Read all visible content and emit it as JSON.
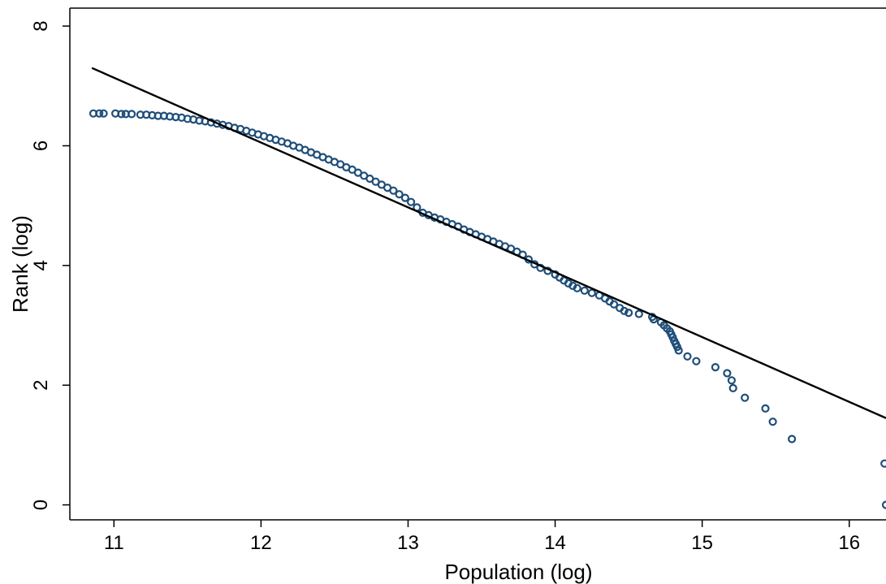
{
  "chart_data": {
    "type": "scatter",
    "xlabel": "Population (log)",
    "ylabel": "Rank (log)",
    "xlim": [
      10.7,
      16.25
    ],
    "ylim": [
      -0.25,
      8.3
    ],
    "xticks": [
      11,
      12,
      13,
      14,
      15,
      16
    ],
    "yticks": [
      0,
      2,
      4,
      6,
      8
    ],
    "xtick_labels": [
      "11",
      "12",
      "13",
      "14",
      "15",
      "16"
    ],
    "ytick_labels": [
      "0",
      "2",
      "4",
      "6",
      "8"
    ],
    "grid": false,
    "legend": "none",
    "colors": {
      "points": "#1f4e79",
      "fit_line": "#000000"
    },
    "fit_line": {
      "x": [
        10.85,
        16.25
      ],
      "y": [
        7.3,
        1.45
      ]
    },
    "series": [
      {
        "marker": "hollow-circle",
        "points": [
          [
            10.86,
            6.54
          ],
          [
            10.9,
            6.54
          ],
          [
            10.93,
            6.54
          ],
          [
            11.01,
            6.54
          ],
          [
            11.05,
            6.53
          ],
          [
            11.08,
            6.53
          ],
          [
            11.12,
            6.53
          ],
          [
            11.18,
            6.52
          ],
          [
            11.22,
            6.52
          ],
          [
            11.26,
            6.51
          ],
          [
            11.3,
            6.5
          ],
          [
            11.34,
            6.5
          ],
          [
            11.38,
            6.49
          ],
          [
            11.42,
            6.48
          ],
          [
            11.46,
            6.47
          ],
          [
            11.5,
            6.45
          ],
          [
            11.54,
            6.44
          ],
          [
            11.58,
            6.42
          ],
          [
            11.62,
            6.41
          ],
          [
            11.66,
            6.39
          ],
          [
            11.7,
            6.37
          ],
          [
            11.74,
            6.35
          ],
          [
            11.78,
            6.33
          ],
          [
            11.82,
            6.3
          ],
          [
            11.86,
            6.28
          ],
          [
            11.9,
            6.25
          ],
          [
            11.94,
            6.22
          ],
          [
            11.98,
            6.19
          ],
          [
            12.02,
            6.16
          ],
          [
            12.06,
            6.13
          ],
          [
            12.1,
            6.1
          ],
          [
            12.14,
            6.07
          ],
          [
            12.18,
            6.04
          ],
          [
            12.22,
            6.0
          ],
          [
            12.26,
            5.97
          ],
          [
            12.3,
            5.93
          ],
          [
            12.34,
            5.89
          ],
          [
            12.38,
            5.85
          ],
          [
            12.42,
            5.81
          ],
          [
            12.46,
            5.77
          ],
          [
            12.5,
            5.73
          ],
          [
            12.54,
            5.69
          ],
          [
            12.58,
            5.64
          ],
          [
            12.62,
            5.6
          ],
          [
            12.66,
            5.55
          ],
          [
            12.7,
            5.5
          ],
          [
            12.74,
            5.45
          ],
          [
            12.78,
            5.4
          ],
          [
            12.82,
            5.35
          ],
          [
            12.86,
            5.3
          ],
          [
            12.9,
            5.25
          ],
          [
            12.94,
            5.19
          ],
          [
            12.98,
            5.13
          ],
          [
            13.02,
            5.06
          ],
          [
            13.06,
            4.97
          ],
          [
            13.1,
            4.88
          ],
          [
            13.14,
            4.84
          ],
          [
            13.18,
            4.8
          ],
          [
            13.22,
            4.77
          ],
          [
            13.26,
            4.73
          ],
          [
            13.3,
            4.69
          ],
          [
            13.34,
            4.65
          ],
          [
            13.38,
            4.6
          ],
          [
            13.42,
            4.56
          ],
          [
            13.46,
            4.52
          ],
          [
            13.5,
            4.48
          ],
          [
            13.54,
            4.44
          ],
          [
            13.58,
            4.4
          ],
          [
            13.62,
            4.36
          ],
          [
            13.66,
            4.32
          ],
          [
            13.7,
            4.28
          ],
          [
            13.74,
            4.23
          ],
          [
            13.78,
            4.18
          ],
          [
            13.82,
            4.1
          ],
          [
            13.86,
            4.02
          ],
          [
            13.9,
            3.96
          ],
          [
            13.95,
            3.91
          ],
          [
            14.0,
            3.85
          ],
          [
            14.03,
            3.8
          ],
          [
            14.06,
            3.75
          ],
          [
            14.09,
            3.7
          ],
          [
            14.12,
            3.66
          ],
          [
            14.15,
            3.62
          ],
          [
            14.2,
            3.58
          ],
          [
            14.25,
            3.54
          ],
          [
            14.3,
            3.5
          ],
          [
            14.34,
            3.45
          ],
          [
            14.37,
            3.4
          ],
          [
            14.4,
            3.35
          ],
          [
            14.44,
            3.29
          ],
          [
            14.47,
            3.24
          ],
          [
            14.5,
            3.21
          ],
          [
            14.57,
            3.19
          ],
          [
            14.66,
            3.14
          ],
          [
            14.67,
            3.1
          ],
          [
            14.72,
            3.05
          ],
          [
            14.74,
            3.0
          ],
          [
            14.76,
            2.95
          ],
          [
            14.78,
            2.9
          ],
          [
            14.79,
            2.85
          ],
          [
            14.8,
            2.8
          ],
          [
            14.81,
            2.74
          ],
          [
            14.82,
            2.69
          ],
          [
            14.83,
            2.64
          ],
          [
            14.84,
            2.58
          ],
          [
            14.9,
            2.48
          ],
          [
            14.96,
            2.4
          ],
          [
            15.09,
            2.3
          ],
          [
            15.17,
            2.2
          ],
          [
            15.2,
            2.08
          ],
          [
            15.21,
            1.95
          ],
          [
            15.29,
            1.79
          ],
          [
            15.43,
            1.61
          ],
          [
            15.48,
            1.39
          ],
          [
            15.61,
            1.1
          ],
          [
            16.24,
            0.69
          ],
          [
            16.25,
            0.0
          ]
        ]
      }
    ]
  }
}
